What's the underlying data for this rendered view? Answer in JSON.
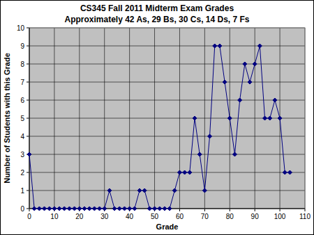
{
  "chart_data": {
    "type": "line",
    "title": "CS345 Fall 2011 Midterm Exam Grades",
    "subtitle": "Approximately 42 As, 29 Bs, 30 Cs, 14 Ds, 7 Fs",
    "x_label": "Grade",
    "y_label": "Number of Students with this Grade",
    "x": [
      0,
      2,
      4,
      6,
      8,
      10,
      12,
      14,
      16,
      18,
      20,
      22,
      24,
      26,
      28,
      30,
      32,
      34,
      36,
      38,
      40,
      42,
      44,
      46,
      48,
      50,
      52,
      54,
      56,
      58,
      60,
      62,
      64,
      66,
      68,
      70,
      72,
      74,
      76,
      78,
      80,
      82,
      84,
      86,
      88,
      90,
      92,
      94,
      96,
      98,
      100,
      102,
      104
    ],
    "values": [
      3,
      0,
      0,
      0,
      0,
      0,
      0,
      0,
      0,
      0,
      0,
      0,
      0,
      0,
      0,
      0,
      1,
      0,
      0,
      0,
      0,
      0,
      1,
      1,
      0,
      0,
      0,
      0,
      0,
      1,
      2,
      2,
      2,
      5,
      3,
      1,
      4,
      9,
      9,
      7,
      5,
      3,
      6,
      8,
      7,
      8,
      9,
      5,
      5,
      6,
      5,
      2,
      2
    ],
    "color": "#000080",
    "marker": "diamond",
    "xlim": [
      0,
      110
    ],
    "xticks": [
      0,
      10,
      20,
      30,
      40,
      50,
      60,
      70,
      80,
      90,
      100,
      110
    ],
    "ylim": [
      0,
      10
    ],
    "yticks": [
      0,
      1,
      2,
      3,
      4,
      5,
      6,
      7,
      8,
      9,
      10
    ],
    "grid": true
  }
}
